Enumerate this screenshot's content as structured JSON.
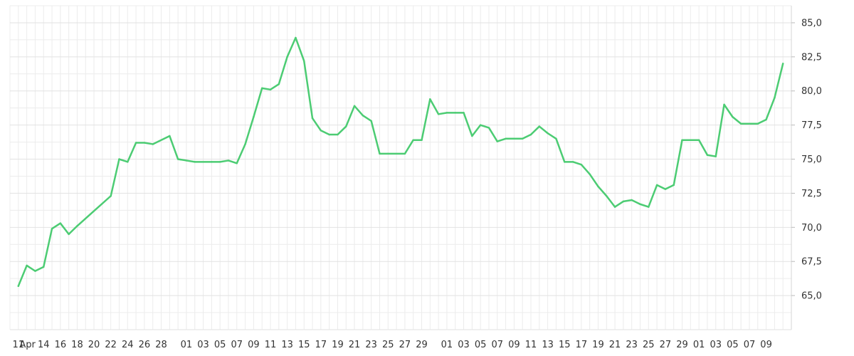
{
  "chart_data": {
    "type": "line",
    "series": [
      {
        "color": "#4ccc73",
        "points": [
          [
            "2024-04-11",
            65.7
          ],
          [
            "2024-04-12",
            67.2
          ],
          [
            "2024-04-13",
            66.8
          ],
          [
            "2024-04-14",
            67.1
          ],
          [
            "2024-04-15",
            69.9
          ],
          [
            "2024-04-16",
            70.3
          ],
          [
            "2024-04-17",
            69.5
          ],
          [
            "2024-04-18",
            70.1
          ],
          [
            "2024-04-22",
            72.3
          ],
          [
            "2024-04-23",
            75.0
          ],
          [
            "2024-04-24",
            74.8
          ],
          [
            "2024-04-25",
            76.2
          ],
          [
            "2024-04-26",
            76.2
          ],
          [
            "2024-04-27",
            76.1
          ],
          [
            "2024-04-29",
            76.7
          ],
          [
            "2024-04-30",
            75.0
          ],
          [
            "2024-05-01",
            74.9
          ],
          [
            "2024-05-02",
            74.8
          ],
          [
            "2024-05-04",
            74.8
          ],
          [
            "2024-05-05",
            74.8
          ],
          [
            "2024-05-06",
            74.9
          ],
          [
            "2024-05-07",
            74.7
          ],
          [
            "2024-05-08",
            76.1
          ],
          [
            "2024-05-09",
            78.1
          ],
          [
            "2024-05-10",
            80.2
          ],
          [
            "2024-05-11",
            80.1
          ],
          [
            "2024-05-12",
            80.5
          ],
          [
            "2024-05-13",
            82.5
          ],
          [
            "2024-05-14",
            83.9
          ],
          [
            "2024-05-15",
            82.2
          ],
          [
            "2024-05-16",
            78.0
          ],
          [
            "2024-05-17",
            77.1
          ],
          [
            "2024-05-18",
            76.8
          ],
          [
            "2024-05-19",
            76.8
          ],
          [
            "2024-05-20",
            77.4
          ],
          [
            "2024-05-21",
            78.9
          ],
          [
            "2024-05-22",
            78.2
          ],
          [
            "2024-05-23",
            77.8
          ],
          [
            "2024-05-24",
            75.4
          ],
          [
            "2024-05-25",
            75.4
          ],
          [
            "2024-05-27",
            75.4
          ],
          [
            "2024-05-28",
            76.4
          ],
          [
            "2024-05-29",
            76.4
          ],
          [
            "2024-05-30",
            79.4
          ],
          [
            "2024-05-31",
            78.3
          ],
          [
            "2024-06-01",
            78.4
          ],
          [
            "2024-06-02",
            78.4
          ],
          [
            "2024-06-03",
            78.4
          ],
          [
            "2024-06-04",
            76.7
          ],
          [
            "2024-06-05",
            77.5
          ],
          [
            "2024-06-06",
            77.3
          ],
          [
            "2024-06-07",
            76.3
          ],
          [
            "2024-06-08",
            76.5
          ],
          [
            "2024-06-09",
            76.5
          ],
          [
            "2024-06-10",
            76.5
          ],
          [
            "2024-06-11",
            76.8
          ],
          [
            "2024-06-12",
            77.4
          ],
          [
            "2024-06-13",
            76.9
          ],
          [
            "2024-06-14",
            76.5
          ],
          [
            "2024-06-15",
            74.8
          ],
          [
            "2024-06-16",
            74.8
          ],
          [
            "2024-06-17",
            74.6
          ],
          [
            "2024-06-18",
            73.9
          ],
          [
            "2024-06-19",
            73.0
          ],
          [
            "2024-06-20",
            72.3
          ],
          [
            "2024-06-21",
            71.5
          ],
          [
            "2024-06-22",
            71.9
          ],
          [
            "2024-06-23",
            72.0
          ],
          [
            "2024-06-24",
            71.7
          ],
          [
            "2024-06-25",
            71.5
          ],
          [
            "2024-06-26",
            73.1
          ],
          [
            "2024-06-27",
            72.8
          ],
          [
            "2024-06-28",
            73.1
          ],
          [
            "2024-06-29",
            76.4
          ],
          [
            "2024-06-30",
            76.4
          ],
          [
            "2024-07-01",
            76.4
          ],
          [
            "2024-07-02",
            75.3
          ],
          [
            "2024-07-03",
            75.2
          ],
          [
            "2024-07-04",
            79.0
          ],
          [
            "2024-07-05",
            78.1
          ],
          [
            "2024-07-06",
            77.6
          ],
          [
            "2024-07-07",
            77.6
          ],
          [
            "2024-07-08",
            77.6
          ],
          [
            "2024-07-09",
            77.9
          ],
          [
            "2024-07-10",
            79.5
          ],
          [
            "2024-07-11",
            82.0
          ]
        ]
      }
    ],
    "x_range": [
      "2024-04-10",
      "2024-07-12"
    ],
    "x_tick_labels": [
      {
        "date": "2024-04-11",
        "label": "11"
      },
      {
        "date": "2024-04-12",
        "label": "Apr"
      },
      {
        "date": "2024-04-14",
        "label": "14"
      },
      {
        "date": "2024-04-16",
        "label": "16"
      },
      {
        "date": "2024-04-18",
        "label": "18"
      },
      {
        "date": "2024-04-20",
        "label": "20"
      },
      {
        "date": "2024-04-22",
        "label": "22"
      },
      {
        "date": "2024-04-24",
        "label": "24"
      },
      {
        "date": "2024-04-26",
        "label": "26"
      },
      {
        "date": "2024-04-28",
        "label": "28"
      },
      {
        "date": "2024-05-01",
        "label": "01"
      },
      {
        "date": "2024-05-03",
        "label": "03"
      },
      {
        "date": "2024-05-05",
        "label": "05"
      },
      {
        "date": "2024-05-07",
        "label": "07"
      },
      {
        "date": "2024-05-09",
        "label": "09"
      },
      {
        "date": "2024-05-11",
        "label": "11"
      },
      {
        "date": "2024-05-13",
        "label": "13"
      },
      {
        "date": "2024-05-15",
        "label": "15"
      },
      {
        "date": "2024-05-17",
        "label": "17"
      },
      {
        "date": "2024-05-19",
        "label": "19"
      },
      {
        "date": "2024-05-21",
        "label": "21"
      },
      {
        "date": "2024-05-23",
        "label": "23"
      },
      {
        "date": "2024-05-25",
        "label": "25"
      },
      {
        "date": "2024-05-27",
        "label": "27"
      },
      {
        "date": "2024-05-29",
        "label": "29"
      },
      {
        "date": "2024-06-01",
        "label": "01"
      },
      {
        "date": "2024-06-03",
        "label": "03"
      },
      {
        "date": "2024-06-05",
        "label": "05"
      },
      {
        "date": "2024-06-07",
        "label": "07"
      },
      {
        "date": "2024-06-09",
        "label": "09"
      },
      {
        "date": "2024-06-11",
        "label": "11"
      },
      {
        "date": "2024-06-13",
        "label": "13"
      },
      {
        "date": "2024-06-15",
        "label": "15"
      },
      {
        "date": "2024-06-17",
        "label": "17"
      },
      {
        "date": "2024-06-19",
        "label": "19"
      },
      {
        "date": "2024-06-21",
        "label": "21"
      },
      {
        "date": "2024-06-23",
        "label": "23"
      },
      {
        "date": "2024-06-25",
        "label": "25"
      },
      {
        "date": "2024-06-27",
        "label": "27"
      },
      {
        "date": "2024-06-29",
        "label": "29"
      },
      {
        "date": "2024-07-01",
        "label": "01"
      },
      {
        "date": "2024-07-03",
        "label": "03"
      },
      {
        "date": "2024-07-05",
        "label": "05"
      },
      {
        "date": "2024-07-07",
        "label": "07"
      },
      {
        "date": "2024-07-09",
        "label": "09"
      }
    ],
    "y_axis": {
      "position": "right",
      "ylim": [
        62.5,
        86.25
      ],
      "ticks": [
        {
          "value": 65.0,
          "label": "65,0"
        },
        {
          "value": 67.5,
          "label": "67,5"
        },
        {
          "value": 70.0,
          "label": "70,0"
        },
        {
          "value": 72.5,
          "label": "72,5"
        },
        {
          "value": 75.0,
          "label": "75,0"
        },
        {
          "value": 77.5,
          "label": "77,5"
        },
        {
          "value": 80.0,
          "label": "80,0"
        },
        {
          "value": 82.5,
          "label": "82,5"
        },
        {
          "value": 85.0,
          "label": "85,0"
        }
      ]
    },
    "grid": true,
    "grid_color": "#ececec",
    "background": "#ffffff"
  }
}
